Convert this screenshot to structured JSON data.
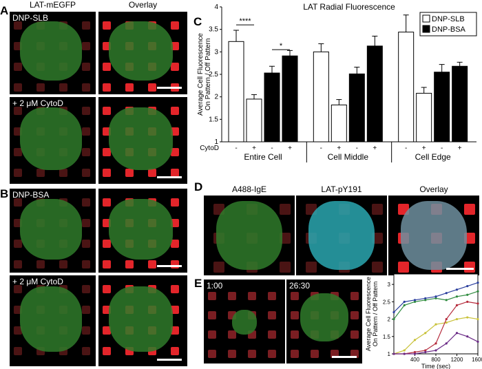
{
  "panels": {
    "A": {
      "letter": "A",
      "col_left": "LAT-mEGFP",
      "col_right": "Overlay",
      "row1_label": "DNP-SLB",
      "row2_label": "+ 2 μM CytoD"
    },
    "B": {
      "letter": "B",
      "row1_label": "DNP-BSA",
      "row2_label": "+ 2 μM CytoD"
    },
    "C": {
      "letter": "C"
    },
    "D": {
      "letter": "D",
      "col1": "A488-IgE",
      "col2": "LAT-pY191",
      "col3": "Overlay"
    },
    "E": {
      "letter": "E",
      "time1": "1:00",
      "time2": "26:30"
    }
  },
  "colors": {
    "slb": "#ffffff",
    "bsa": "#000000",
    "red_pattern": "#e3252a",
    "green_cell": "#2f7a2a",
    "cyan_cell": "#2aa7b0"
  },
  "chart_data": [
    {
      "type": "bar",
      "title": "LAT Radial Fluorescence",
      "ylabel": "Average Cell Fluorescence On Pattern / Off Pattern",
      "ylim": [
        1,
        4
      ],
      "yticks": [
        "1",
        "1.5",
        "2",
        "2.5",
        "3",
        "3.5",
        "4"
      ],
      "cytod_label": "CytoD",
      "cytod_marks": [
        "-",
        "+",
        "-",
        "+",
        "-",
        "+",
        "-",
        "+",
        "-",
        "+",
        "-",
        "+"
      ],
      "groups": [
        "Entire Cell",
        "Cell Middle",
        "Cell Edge"
      ],
      "legend_placement": "top-right",
      "series": [
        {
          "name": "DNP-SLB",
          "values": [
            3.23,
            1.95,
            3.0,
            1.82,
            3.44,
            2.08
          ],
          "errors": [
            0.25,
            0.1,
            0.18,
            0.12,
            0.38,
            0.13
          ]
        },
        {
          "name": "DNP-BSA",
          "values": [
            2.53,
            2.91,
            2.51,
            3.13,
            2.55,
            2.68
          ],
          "errors": [
            0.15,
            0.12,
            0.15,
            0.22,
            0.17,
            0.09
          ]
        }
      ],
      "significance": [
        "****",
        "*"
      ]
    },
    {
      "type": "line",
      "ylabel": "Average Cell Fluorescence On Pattern / Off Pattern",
      "xlabel": "Time (sec)",
      "xlim": [
        0,
        1600
      ],
      "ylim": [
        1,
        3.3
      ],
      "xticks": [
        "400",
        "800",
        "1200",
        "1600"
      ],
      "yticks": [
        "1",
        "1.5",
        "2",
        "2.5",
        "3"
      ],
      "series": [
        {
          "color": "#2e8b3e",
          "x": [
            0,
            200,
            400,
            600,
            800,
            1000,
            1200,
            1400,
            1600
          ],
          "values": [
            2.0,
            2.4,
            2.5,
            2.55,
            2.6,
            2.55,
            2.65,
            2.7,
            2.8
          ]
        },
        {
          "color": "#2b3f9e",
          "x": [
            0,
            200,
            400,
            600,
            800,
            1000,
            1200,
            1400,
            1600
          ],
          "values": [
            2.2,
            2.5,
            2.55,
            2.6,
            2.65,
            2.75,
            2.85,
            2.95,
            3.05
          ]
        },
        {
          "color": "#c9c23a",
          "x": [
            0,
            200,
            400,
            600,
            800,
            1000,
            1200,
            1400,
            1600
          ],
          "values": [
            1.0,
            1.1,
            1.4,
            1.6,
            1.85,
            1.9,
            2.0,
            2.05,
            2.0
          ]
        },
        {
          "color": "#b52b3c",
          "x": [
            0,
            200,
            400,
            600,
            800,
            1000,
            1200,
            1400,
            1600
          ],
          "values": [
            1.0,
            1.0,
            1.05,
            1.1,
            1.3,
            2.0,
            2.4,
            2.5,
            2.45
          ]
        },
        {
          "color": "#6a2a86",
          "x": [
            0,
            200,
            400,
            600,
            800,
            1000,
            1200,
            1400,
            1600
          ],
          "values": [
            1.0,
            1.0,
            1.0,
            1.05,
            1.1,
            1.3,
            1.6,
            1.5,
            1.35
          ]
        }
      ]
    }
  ]
}
